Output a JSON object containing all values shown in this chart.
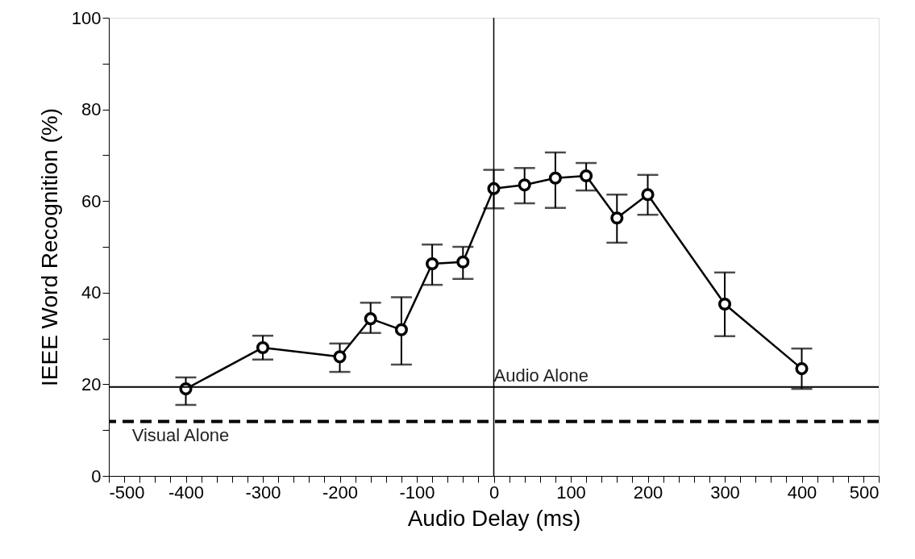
{
  "chart_data": {
    "type": "line",
    "xlabel": "Audio Delay (ms)",
    "ylabel": "IEEE Word Recognition (%)",
    "x": [
      -400,
      -300,
      -200,
      -160,
      -120,
      -80,
      -40,
      0,
      40,
      80,
      120,
      160,
      200,
      300,
      400
    ],
    "series": [
      {
        "color": "#000000",
        "values": [
          19,
          28,
          26,
          34.3,
          31.9,
          46.3,
          46.7,
          62.7,
          63.5,
          65,
          65.5,
          56.3,
          61.4,
          37.5,
          23.4
        ],
        "errors": [
          [
            15.5,
            21.5
          ],
          [
            25.4,
            30.6
          ],
          [
            22.7,
            28.9
          ],
          [
            31.2,
            37.8
          ],
          [
            24.3,
            39
          ],
          [
            41.7,
            50.5
          ],
          [
            43,
            50
          ],
          [
            58.4,
            66.8
          ],
          [
            59.5,
            67.2
          ],
          [
            58.5,
            70.6
          ],
          [
            62.3,
            68.3
          ],
          [
            50.9,
            61.4
          ],
          [
            57,
            65.7
          ],
          [
            30.5,
            44.4
          ],
          [
            19,
            27.8
          ]
        ]
      }
    ],
    "xlim": [
      -500,
      500
    ],
    "xticks": [
      -500,
      {
        "value": -480,
        "label": null
      },
      {
        "value": -460,
        "label": null
      },
      {
        "value": -440,
        "label": null
      },
      {
        "value": -420,
        "label": null
      },
      -400,
      {
        "value": -380,
        "label": null
      },
      {
        "value": -360,
        "label": null
      },
      {
        "value": -340,
        "label": null
      },
      {
        "value": -320,
        "label": null
      },
      -300,
      {
        "value": -280,
        "label": null
      },
      {
        "value": -260,
        "label": null
      },
      {
        "value": -240,
        "label": null
      },
      {
        "value": -220,
        "label": null
      },
      -200,
      {
        "value": -180,
        "label": null
      },
      {
        "value": -160,
        "label": null
      },
      {
        "value": -140,
        "label": null
      },
      {
        "value": -120,
        "label": null
      },
      -100,
      {
        "value": -80,
        "label": null
      },
      {
        "value": -60,
        "label": null
      },
      {
        "value": -40,
        "label": null
      },
      {
        "value": -20,
        "label": null
      },
      0,
      {
        "value": 20,
        "label": null
      },
      {
        "value": 40,
        "label": null
      },
      {
        "value": 60,
        "label": null
      },
      {
        "value": 80,
        "label": null
      },
      100,
      {
        "value": 120,
        "label": null
      },
      {
        "value": 140,
        "label": null
      },
      {
        "value": 160,
        "label": null
      },
      {
        "value": 180,
        "label": null
      },
      200,
      {
        "value": 220,
        "label": null
      },
      {
        "value": 240,
        "label": null
      },
      {
        "value": 260,
        "label": null
      },
      {
        "value": 280,
        "label": null
      },
      300,
      {
        "value": 320,
        "label": null
      },
      {
        "value": 340,
        "label": null
      },
      {
        "value": 360,
        "label": null
      },
      {
        "value": 380,
        "label": null
      },
      400,
      {
        "value": 420,
        "label": null
      },
      {
        "value": 440,
        "label": null
      },
      {
        "value": 460,
        "label": null
      },
      {
        "value": 480,
        "label": null
      },
      500
    ],
    "ylim": [
      0,
      100
    ],
    "yticks": [
      0,
      {
        "value": 10,
        "label": null
      },
      20,
      {
        "value": 30,
        "label": null
      },
      40,
      {
        "value": 50,
        "label": null
      },
      60,
      {
        "value": 70,
        "label": null
      },
      80,
      {
        "value": 90,
        "label": null
      },
      100
    ],
    "ref_lines": [
      {
        "axis": "y",
        "value": 19.4,
        "label": "Audio Alone",
        "line_style": "solid",
        "color": "#000000"
      },
      {
        "axis": "y",
        "value": 11.9,
        "label": "Visual Alone",
        "line_style": "dashed",
        "color": "#000000"
      },
      {
        "axis": "x",
        "value": 0,
        "color": "#000000",
        "line_style": "solid"
      }
    ],
    "marker": "circle",
    "line_style": "solid",
    "grid": false
  }
}
